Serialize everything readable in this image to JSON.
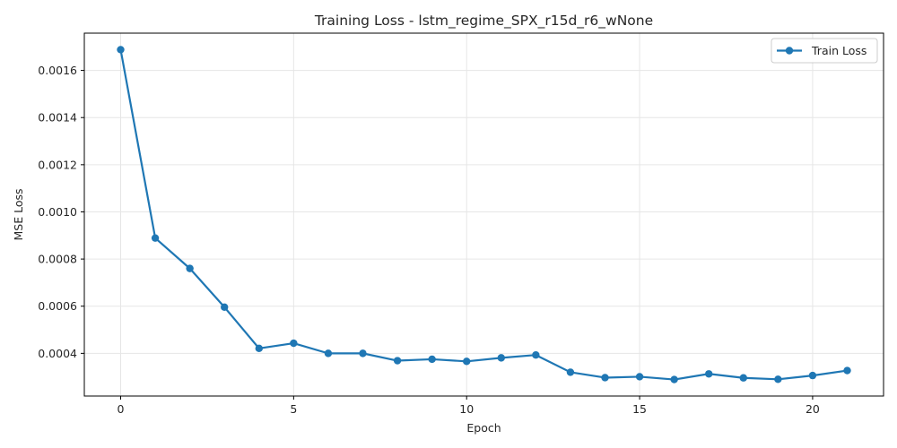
{
  "chart_data": {
    "type": "line",
    "title": "Training Loss - lstm_regime_SPX_r15d_r6_wNone",
    "xlabel": "Epoch",
    "ylabel": "MSE Loss",
    "x": [
      0,
      1,
      2,
      3,
      4,
      5,
      6,
      7,
      8,
      9,
      10,
      11,
      12,
      13,
      14,
      15,
      16,
      17,
      18,
      19,
      20,
      21
    ],
    "series": [
      {
        "name": "Train Loss",
        "color": "#1f77b4",
        "values": [
          0.001688,
          0.000889,
          0.00076,
          0.000596,
          0.000421,
          0.000443,
          0.0004,
          0.0004,
          0.000369,
          0.000375,
          0.000366,
          0.000381,
          0.000393,
          0.00032,
          0.000297,
          0.000301,
          0.000289,
          0.000313,
          0.000296,
          0.00029,
          0.000306,
          0.000327
        ]
      }
    ],
    "xlim": [
      -1.05,
      22.05
    ],
    "ylim": [
      0.000219,
      0.001758
    ],
    "xticks": [
      0,
      5,
      10,
      15,
      20
    ],
    "xtick_labels": [
      "0",
      "5",
      "10",
      "15",
      "20"
    ],
    "yticks": [
      0.0004,
      0.0006,
      0.0008,
      0.001,
      0.0012,
      0.0014,
      0.0016
    ],
    "ytick_labels": [
      "0.0004",
      "0.0006",
      "0.0008",
      "0.0010",
      "0.0012",
      "0.0014",
      "0.0016"
    ],
    "grid": true,
    "legend_position": "top-right"
  }
}
